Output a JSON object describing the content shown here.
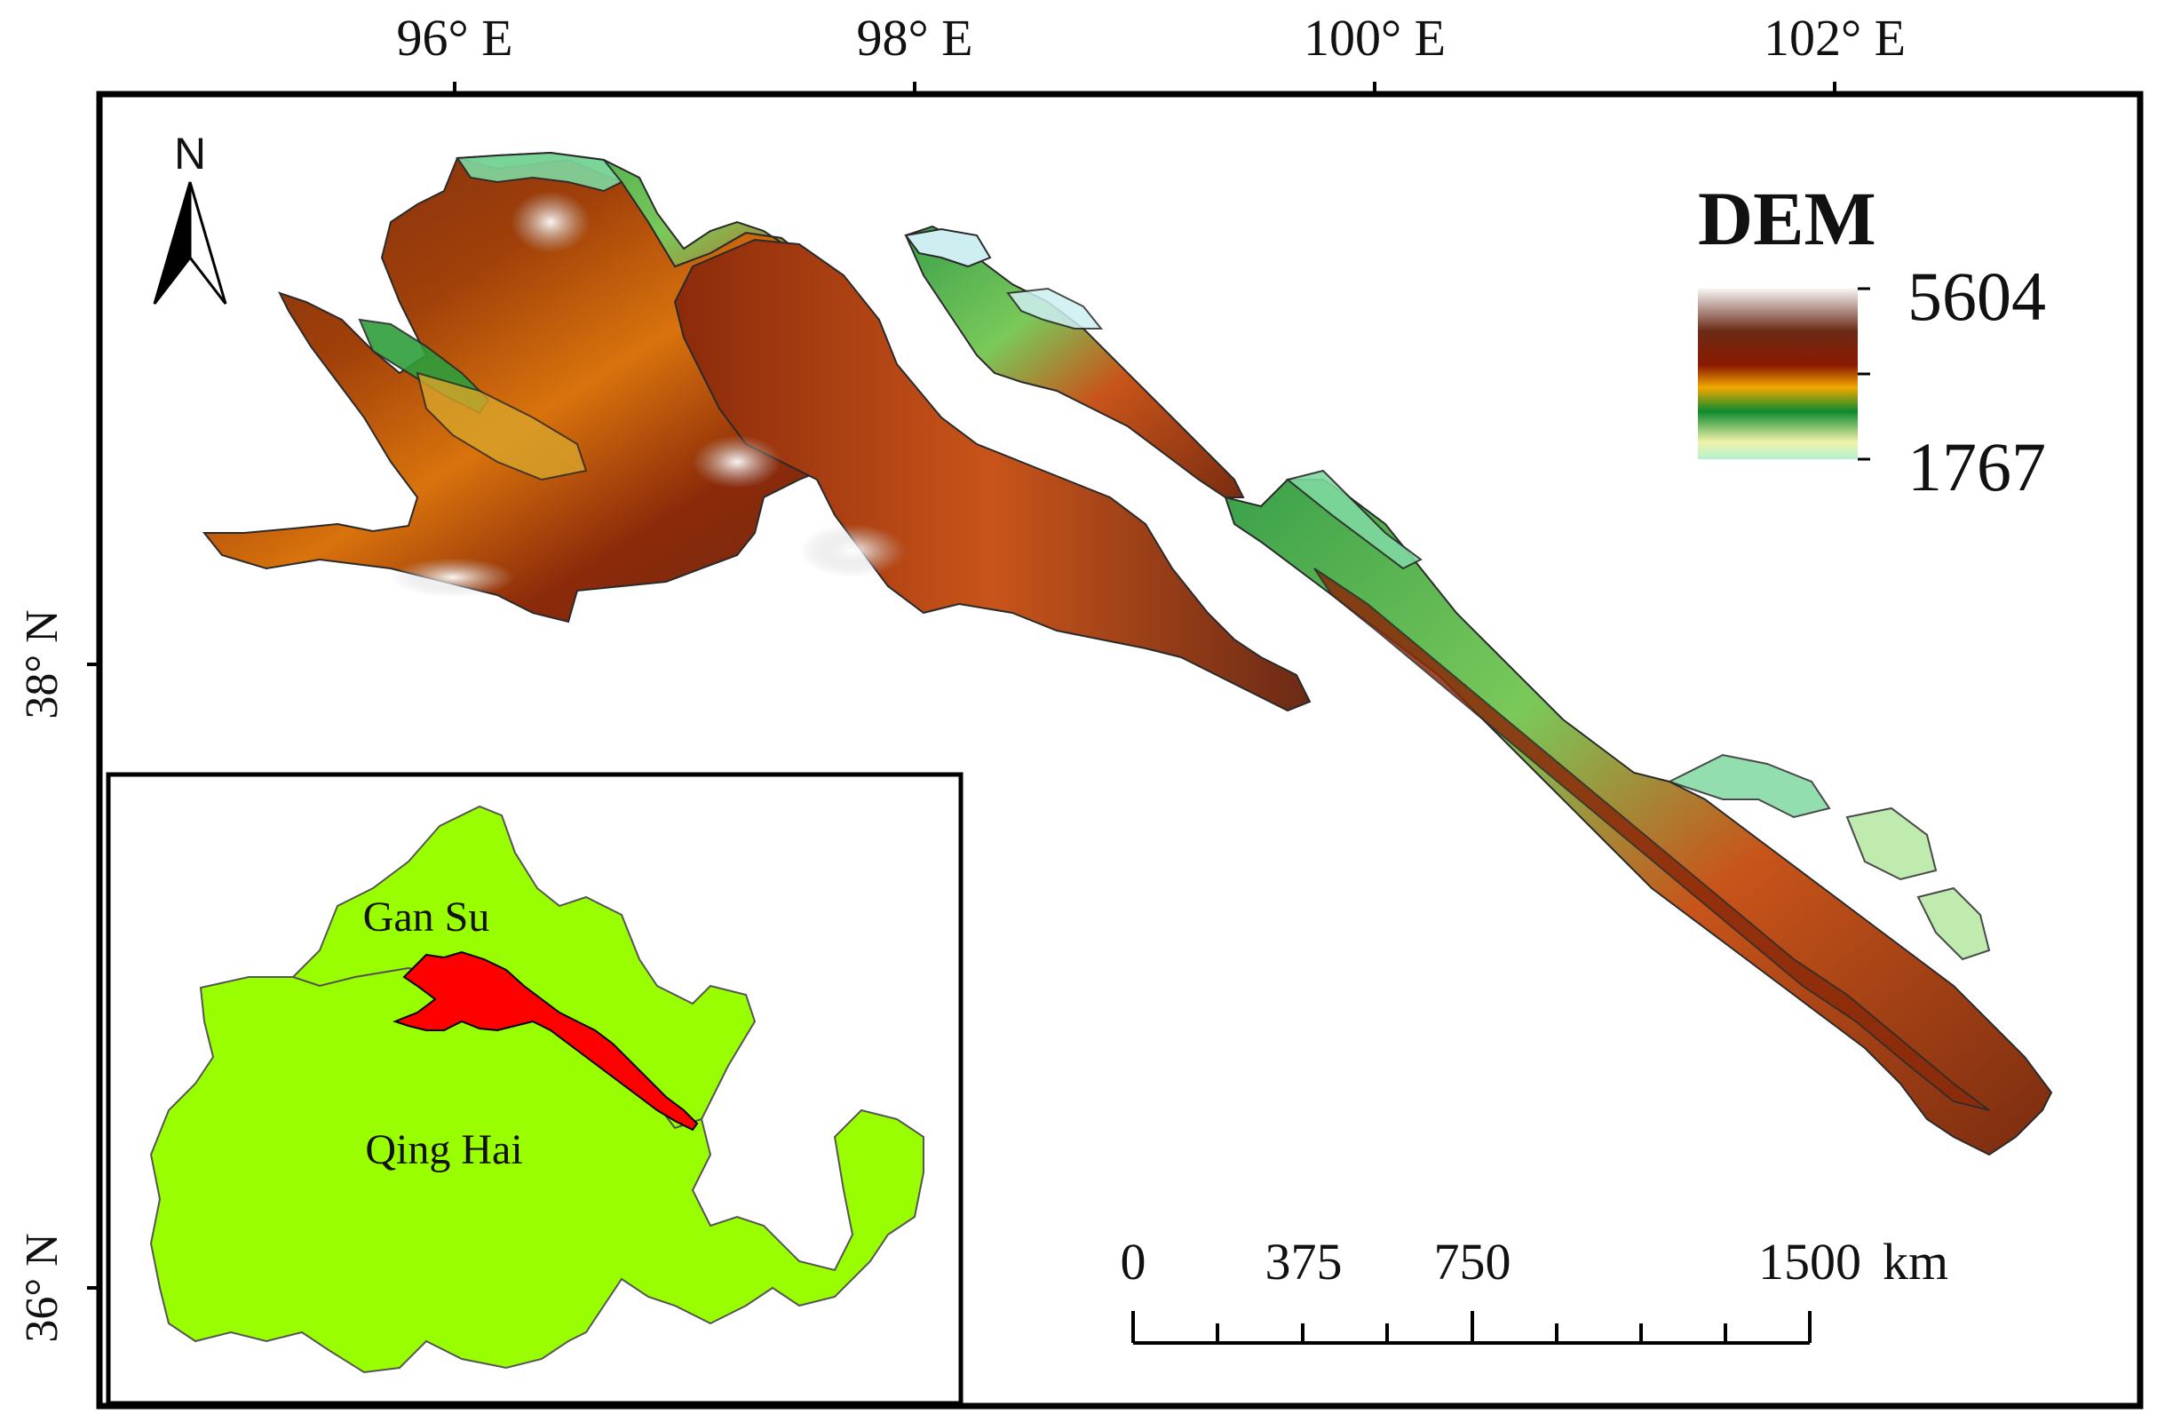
{
  "graticule": {
    "longitudes": [
      "96° E",
      "98° E",
      "100° E",
      "102° E"
    ],
    "latitudes": [
      "38° N",
      "36° N"
    ]
  },
  "north_arrow": {
    "letter": "N",
    "icon": "north-arrow-icon"
  },
  "legend": {
    "title": "DEM",
    "max": "5604",
    "min": "1767",
    "ramp_colors": [
      "#b3f2d0",
      "#f2f2aa",
      "#0d8a2e",
      "#f2a800",
      "#8b1a00",
      "#6b2a16",
      "#f5f5f5"
    ]
  },
  "scale_bar": {
    "labels": [
      "0",
      "375",
      "750",
      "1500"
    ],
    "unit": "km"
  },
  "inset": {
    "labels": {
      "gansu": "Gan Su",
      "qinghai": "Qing Hai"
    },
    "colors": {
      "province_fill": "#99ff00",
      "study_area_fill": "#ff0000"
    }
  },
  "colors": {
    "frame": "#000000",
    "high_elevation": "#6b2a16",
    "mid_elevation": "#d9730d",
    "low_elevation": "#2e9e3a",
    "snow": "#f2f2f2"
  }
}
